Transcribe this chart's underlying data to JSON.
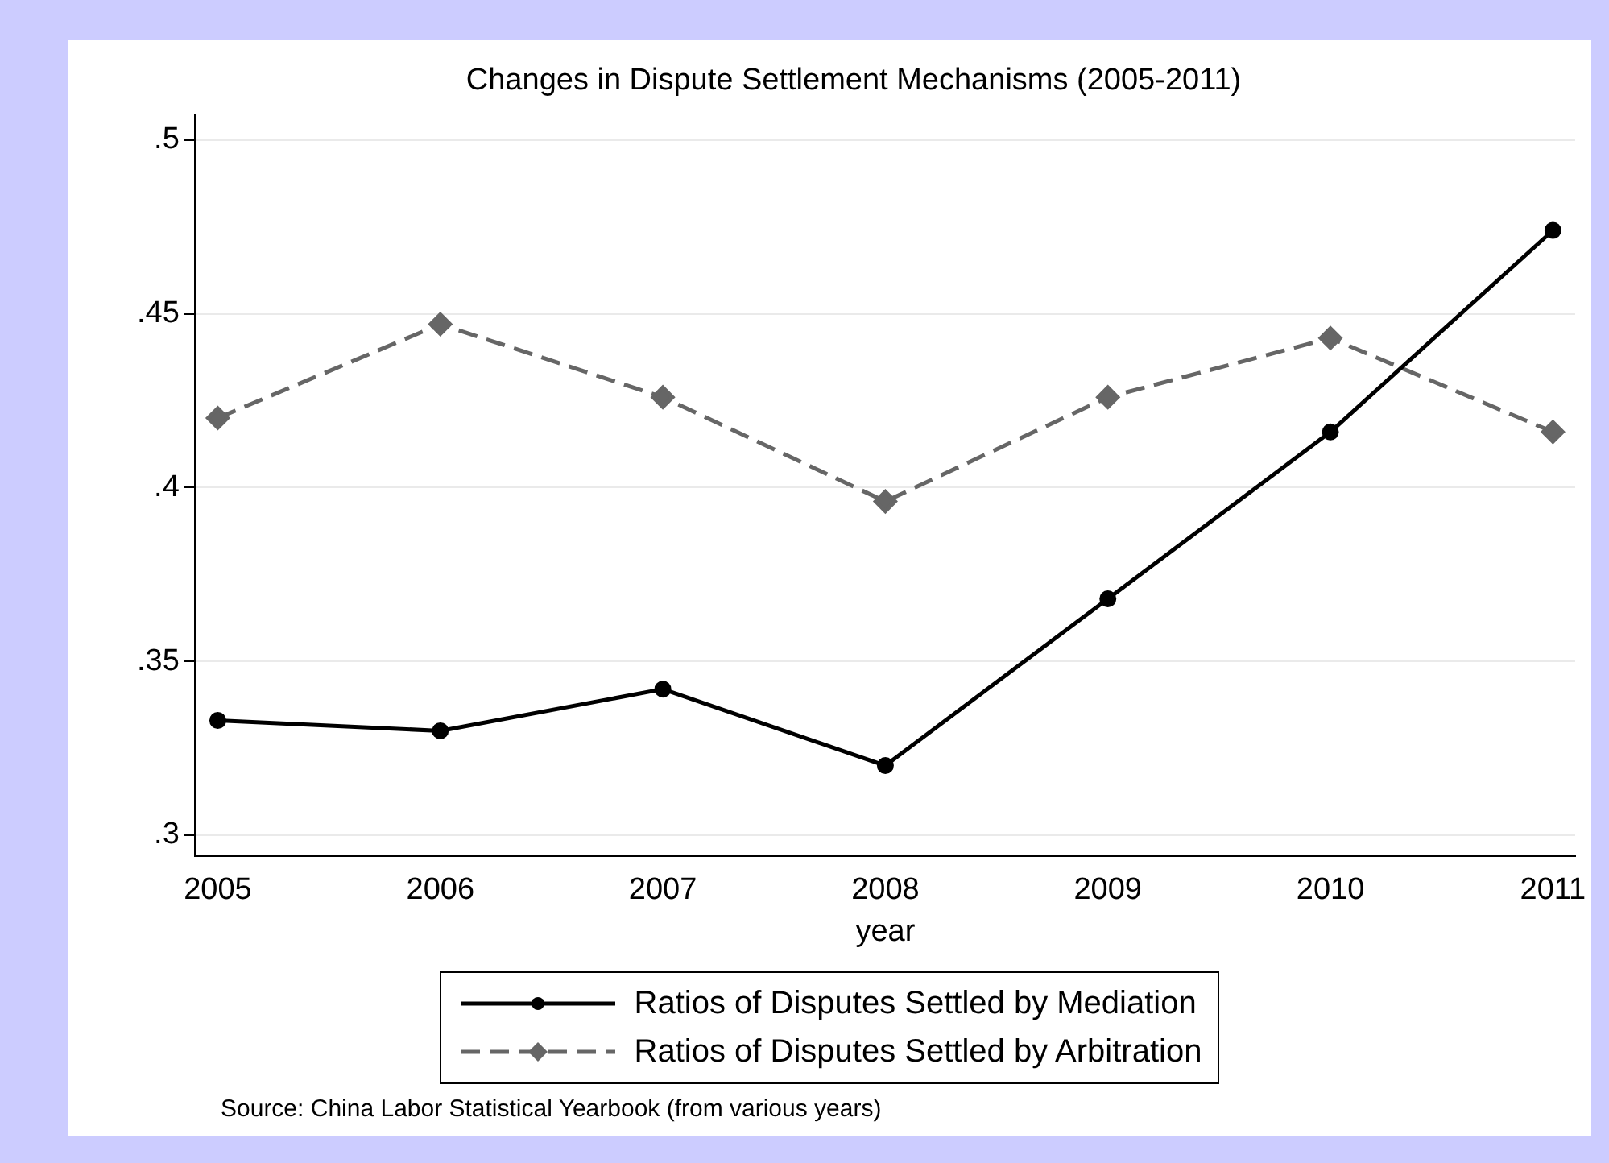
{
  "chart_data": {
    "type": "line",
    "title": "Changes in Dispute Settlement Mechanisms (2005-2011)",
    "xlabel": "year",
    "x": [
      2005,
      2006,
      2007,
      2008,
      2009,
      2010,
      2011
    ],
    "xlim": [
      2004.9,
      2011.1
    ],
    "xticks": [
      2005,
      2006,
      2007,
      2008,
      2009,
      2010,
      2011
    ],
    "ylim": [
      0.294,
      0.507
    ],
    "yticks": [
      {
        "value": 0.3,
        "label": ".3"
      },
      {
        "value": 0.35,
        "label": ".35"
      },
      {
        "value": 0.4,
        "label": ".4"
      },
      {
        "value": 0.45,
        "label": ".45"
      },
      {
        "value": 0.5,
        "label": ".5"
      }
    ],
    "series": [
      {
        "name": "Ratios of Disputes Settled by Mediation",
        "color": "#000000",
        "marker": "circle",
        "line_style": "solid",
        "values": [
          0.333,
          0.33,
          0.342,
          0.32,
          0.368,
          0.416,
          0.474
        ]
      },
      {
        "name": "Ratios of Disputes Settled by Arbitration",
        "color": "#666666",
        "marker": "diamond",
        "line_style": "dashed",
        "values": [
          0.42,
          0.447,
          0.426,
          0.396,
          0.426,
          0.443,
          0.416
        ]
      }
    ],
    "grid": "y",
    "legend": "bottom",
    "annotations": [
      "Source: China Labor Statistical Yearbook (from various years)"
    ]
  }
}
